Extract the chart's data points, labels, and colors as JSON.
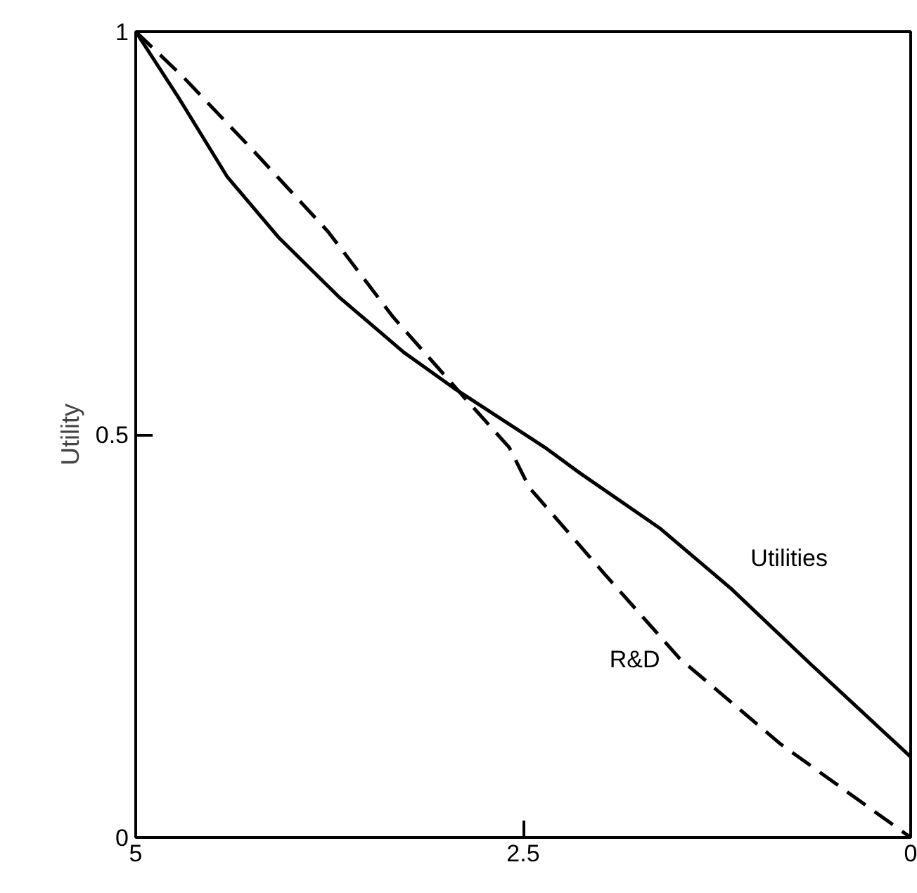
{
  "chart_data": {
    "type": "line",
    "ylabel": "Utility",
    "xlim": [
      5,
      0
    ],
    "ylim": [
      0,
      1
    ],
    "xticks": [
      5,
      2.5,
      0
    ],
    "yticks": [
      0,
      0.5,
      1
    ],
    "grid": false,
    "legend": false,
    "marker": "none",
    "series": [
      {
        "name": "Utilities",
        "color": "#000000",
        "line_style": "solid",
        "x": [
          5,
          4.73,
          4.41,
          4.08,
          3.69,
          3.27,
          2.95,
          2.36,
          2.14,
          1.62,
          1.16,
          0.65,
          0
        ],
        "values": [
          1,
          0.92,
          0.82,
          0.745,
          0.671,
          0.602,
          0.558,
          0.484,
          0.453,
          0.384,
          0.309,
          0.216,
          0.1
        ]
      },
      {
        "name": "R&D",
        "color": "#000000",
        "line_style": "dashed",
        "x": [
          5,
          4.7,
          4.24,
          3.76,
          3.34,
          2.88,
          2.59,
          2.46,
          1.98,
          1.49,
          0.84,
          0
        ],
        "values": [
          1,
          0.945,
          0.852,
          0.752,
          0.646,
          0.546,
          0.484,
          0.434,
          0.328,
          0.222,
          0.116,
          0
        ]
      }
    ]
  }
}
